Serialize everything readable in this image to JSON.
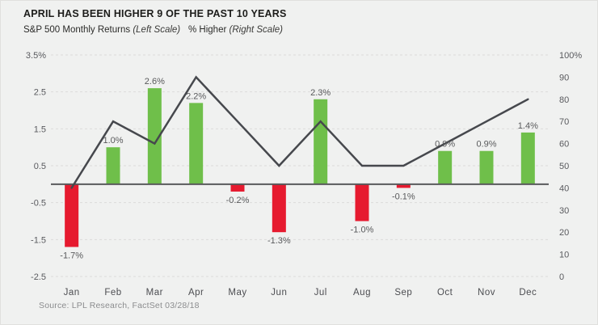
{
  "header": {
    "title": "APRIL HAS BEEN HIGHER 9 OF THE PAST 10 YEARS",
    "legend_left_series": "S&P 500 Monthly Returns",
    "legend_left_scale": "(Left Scale)",
    "legend_right_series": "% Higher",
    "legend_right_scale": "(Right Scale)"
  },
  "source": "Source: LPL Research, FactSet 03/28/18",
  "colors": {
    "positive_bar": "#6fbf4a",
    "negative_bar": "#e61a2f",
    "line": "#46484d",
    "zero_axis": "#595a5c",
    "gridline": "#dcdcda",
    "background": "#f0f1f0"
  },
  "chart_data": {
    "type": "bar+line combo",
    "title": "APRIL HAS BEEN HIGHER 9 OF THE PAST 10 YEARS",
    "categories": [
      "Jan",
      "Feb",
      "Mar",
      "Apr",
      "May",
      "Jun",
      "Jul",
      "Aug",
      "Sep",
      "Oct",
      "Nov",
      "Dec"
    ],
    "series": [
      {
        "name": "S&P 500 Monthly Returns",
        "type": "bar",
        "axis": "left",
        "values": [
          -1.7,
          1.0,
          2.6,
          2.2,
          -0.2,
          -1.3,
          2.3,
          -1.0,
          -0.1,
          0.9,
          0.9,
          1.4
        ],
        "labels": [
          "-1.7%",
          "1.0%",
          "2.6%",
          "2.2%",
          "-0.2%",
          "-1.3%",
          "2.3%",
          "-1.0%",
          "-0.1%",
          "0.9%",
          "0.9%",
          "1.4%"
        ]
      },
      {
        "name": "% Higher",
        "type": "line",
        "axis": "right",
        "values": [
          40,
          70,
          60,
          90,
          70,
          50,
          70,
          50,
          50,
          60,
          70,
          80
        ]
      }
    ],
    "left_axis": {
      "min": -2.5,
      "max": 3.5,
      "tick_values": [
        3.5,
        2.5,
        1.5,
        0.5,
        -0.5,
        -1.5,
        -2.5
      ],
      "tick_labels": [
        "3.5%",
        "2.5",
        "1.5",
        "0.5",
        "-0.5",
        "-1.5",
        "-2.5"
      ]
    },
    "right_axis": {
      "min": 0,
      "max": 100,
      "tick_values": [
        100,
        90,
        80,
        70,
        60,
        50,
        40,
        30,
        20,
        10,
        0
      ],
      "tick_labels": [
        "100%",
        "90",
        "80",
        "70",
        "60",
        "50",
        "40",
        "30",
        "20",
        "10",
        "0"
      ]
    },
    "grid": "horizontal dashed at left-axis ticks",
    "legend_position": "top"
  }
}
